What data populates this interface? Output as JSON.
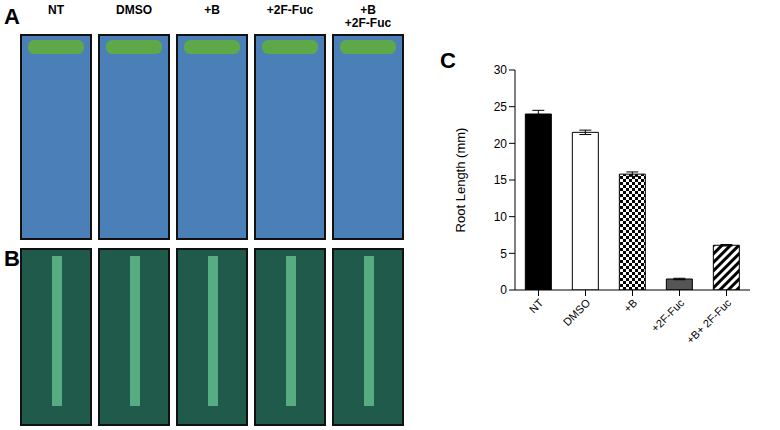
{
  "panels": {
    "labels": [
      "A",
      "B",
      "C"
    ],
    "photo_labels": [
      [
        "NT"
      ],
      [
        "DMSO"
      ],
      [
        "+B"
      ],
      [
        "+2F-Fuc"
      ],
      [
        "+B",
        "+2F-Fuc"
      ]
    ]
  },
  "chart_data": {
    "type": "bar",
    "categories": [
      "NT",
      "DMSO",
      "+B",
      "+2F-Fuc",
      "+B+ 2F-Fuc"
    ],
    "values": [
      24,
      21.5,
      15.8,
      1.5,
      6.1
    ],
    "error": [
      0.5,
      0.3,
      0.3,
      0.1,
      0.1
    ],
    "colors": [
      "#000000",
      "#ffffff",
      "#000000",
      "#555555",
      "#000000"
    ],
    "ylabel": "Root Length (mm)",
    "ylim": [
      0,
      30
    ],
    "yticks": [
      0,
      5,
      10,
      15,
      20,
      25,
      30
    ],
    "grid": false
  }
}
